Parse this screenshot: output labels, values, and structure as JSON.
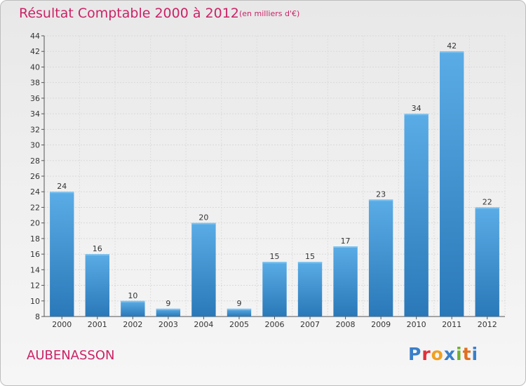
{
  "header": {
    "title": "Résultat Comptable 2000 à 2012",
    "unit": "(en milliers d'€)"
  },
  "footer": {
    "commune": "AUBENASSON",
    "logo": "Proxiti"
  },
  "colors": {
    "title": "#cc2266",
    "bar_light": "#5aace6",
    "bar_dark": "#2a78b8",
    "logo": [
      "#3a7fc8",
      "#e0303a",
      "#f0a020",
      "#3a7fc8",
      "#70b030",
      "#e07020",
      "#3a7fc8"
    ]
  },
  "chart_data": {
    "type": "bar",
    "title": "Résultat Comptable 2000 à 2012",
    "subtitle": "(en milliers d'€)",
    "xlabel": "",
    "ylabel": "",
    "categories": [
      "2000",
      "2001",
      "2002",
      "2003",
      "2004",
      "2005",
      "2006",
      "2007",
      "2008",
      "2009",
      "2010",
      "2011",
      "2012"
    ],
    "values": [
      24,
      16,
      10,
      9,
      20,
      9,
      15,
      15,
      17,
      23,
      34,
      42,
      22
    ],
    "ylim": [
      8,
      44
    ],
    "yticks": [
      8,
      10,
      12,
      14,
      16,
      18,
      20,
      22,
      24,
      26,
      28,
      30,
      32,
      34,
      36,
      38,
      40,
      42,
      44
    ],
    "grid": true
  }
}
